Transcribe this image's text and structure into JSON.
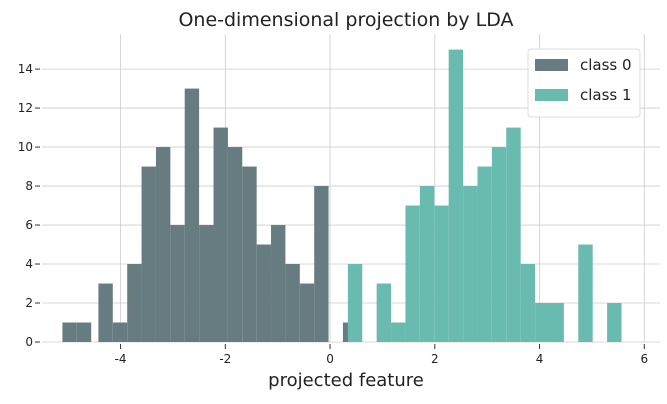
{
  "chart_data": {
    "type": "bar",
    "title": "One-dimensional projection by LDA",
    "xlabel": "projected feature",
    "ylabel": "",
    "xlim": [
      -5.5,
      6.3
    ],
    "ylim": [
      0,
      15.8
    ],
    "xticks": [
      -4,
      -2,
      0,
      2,
      4,
      6
    ],
    "xtick_labels": [
      "-4",
      "-2",
      "0",
      "2",
      "4",
      "6"
    ],
    "yticks": [
      0,
      2,
      4,
      6,
      8,
      10,
      12,
      14
    ],
    "ytick_labels": [
      "0",
      "2",
      "4",
      "6",
      "8",
      "10",
      "12",
      "14"
    ],
    "grid": true,
    "legend_position": "top-right",
    "bin_width": 0.2747,
    "series": [
      {
        "name": "class 0",
        "color": "#667c80",
        "bins": [
          {
            "x0": -5.11,
            "count": 1
          },
          {
            "x0": -4.835,
            "count": 1
          },
          {
            "x0": -4.423,
            "count": 3
          },
          {
            "x0": -4.148,
            "count": 1
          },
          {
            "x0": -3.873,
            "count": 4
          },
          {
            "x0": -3.599,
            "count": 9
          },
          {
            "x0": -3.324,
            "count": 10
          },
          {
            "x0": -3.049,
            "count": 6
          },
          {
            "x0": -2.775,
            "count": 13
          },
          {
            "x0": -2.5,
            "count": 6
          },
          {
            "x0": -2.225,
            "count": 11
          },
          {
            "x0": -1.951,
            "count": 10
          },
          {
            "x0": -1.676,
            "count": 9
          },
          {
            "x0": -1.401,
            "count": 5
          },
          {
            "x0": -1.127,
            "count": 6
          },
          {
            "x0": -0.852,
            "count": 4
          },
          {
            "x0": -0.577,
            "count": 3
          },
          {
            "x0": -0.303,
            "count": 8
          },
          {
            "x0": 0.246,
            "count": 1
          }
        ]
      },
      {
        "name": "class 1",
        "color": "#69bbb0",
        "bins": [
          {
            "x0": 0.34,
            "count": 4
          },
          {
            "x0": 0.89,
            "count": 3
          },
          {
            "x0": 1.165,
            "count": 1
          },
          {
            "x0": 1.44,
            "count": 7
          },
          {
            "x0": 1.715,
            "count": 8
          },
          {
            "x0": 1.99,
            "count": 7
          },
          {
            "x0": 2.265,
            "count": 15
          },
          {
            "x0": 2.54,
            "count": 8
          },
          {
            "x0": 2.815,
            "count": 9
          },
          {
            "x0": 3.09,
            "count": 10
          },
          {
            "x0": 3.365,
            "count": 11
          },
          {
            "x0": 3.64,
            "count": 4
          },
          {
            "x0": 3.915,
            "count": 2
          },
          {
            "x0": 4.19,
            "count": 2
          },
          {
            "x0": 4.74,
            "count": 5
          },
          {
            "x0": 5.29,
            "count": 2
          }
        ]
      }
    ]
  }
}
